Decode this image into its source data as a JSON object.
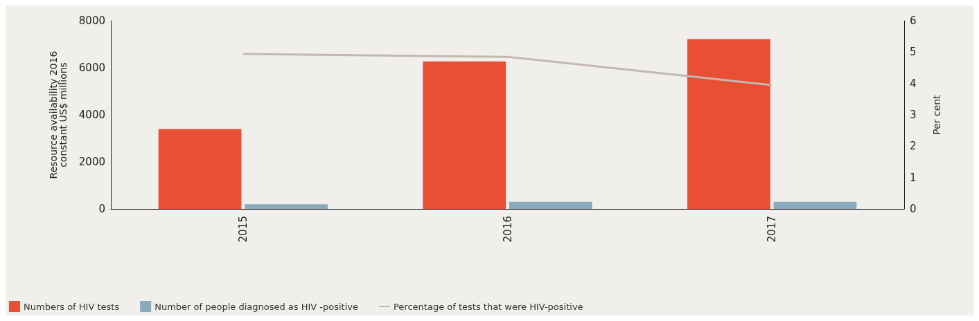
{
  "chart_data": {
    "type": "bar",
    "categories": [
      "2015",
      "2016",
      "2017"
    ],
    "ylabel": "Resource availability 2016\nconstant US$ millions",
    "y2label": "Per cent",
    "ylim": [
      0,
      8000
    ],
    "yticks": [
      0,
      2000,
      4000,
      6000,
      8000
    ],
    "y2lim": [
      0,
      6
    ],
    "y2ticks": [
      0,
      1,
      2,
      3,
      4,
      5,
      6
    ],
    "series": [
      {
        "name": "Numbers of HIV tests",
        "color": "#e84f35",
        "values": [
          3400,
          6270,
          7220
        ]
      },
      {
        "name": "Number of people diagnosed as HIV -positive",
        "color": "#8aabbb",
        "values": [
          200,
          300,
          300
        ]
      },
      {
        "name": "Percentage of tests that were HIV-positive",
        "type": "line",
        "axis": "y2",
        "color": "#c2b8b0",
        "values": [
          4.94,
          4.85,
          3.95
        ]
      }
    ],
    "grid": false,
    "legend": "bottom left",
    "marker": "none"
  }
}
